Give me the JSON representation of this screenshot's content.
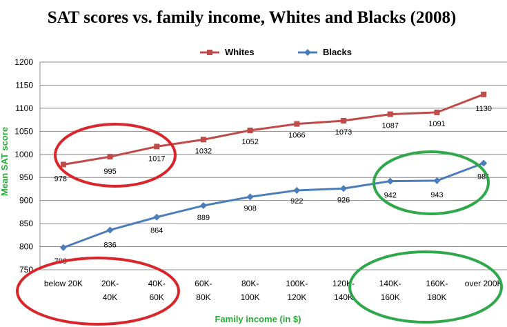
{
  "chart_data": {
    "type": "line",
    "title": "SAT scores vs. family income, Whites and Blacks (2008)",
    "xlabel": "Family income (in $)",
    "ylabel": "Mean SAT score",
    "ylim": [
      750,
      1200
    ],
    "yticks": [
      750,
      800,
      850,
      900,
      950,
      1000,
      1050,
      1100,
      1150,
      1200
    ],
    "grid": "horizontal",
    "legend": "top-center",
    "categories": [
      [
        "below 20K"
      ],
      [
        "20K-",
        "40K"
      ],
      [
        "40K-",
        "60K"
      ],
      [
        "60K-",
        "80K"
      ],
      [
        "80K-",
        "100K"
      ],
      [
        "100K-",
        "120K"
      ],
      [
        "120K-",
        "140K"
      ],
      [
        "140K-",
        "160K"
      ],
      [
        "160K-",
        "180K"
      ],
      [
        "over 200K"
      ]
    ],
    "series": [
      {
        "name": "Whites",
        "color": "#be4b48",
        "marker": "square",
        "values": [
          978,
          995,
          1017,
          1032,
          1052,
          1066,
          1073,
          1087,
          1091,
          1130
        ]
      },
      {
        "name": "Blacks",
        "color": "#4a7ebb",
        "marker": "diamond",
        "values": [
          798,
          836,
          864,
          889,
          908,
          922,
          926,
          942,
          943,
          981
        ]
      }
    ],
    "annotations": [
      {
        "shape": "ellipse",
        "color": "#d9262b",
        "around": "Whites 20K-60K"
      },
      {
        "shape": "ellipse",
        "color": "#d9262b",
        "around": "x-axis low incomes"
      },
      {
        "shape": "ellipse",
        "color": "#2ea84a",
        "around": "Blacks 140K-200K"
      },
      {
        "shape": "ellipse",
        "color": "#2ea84a",
        "around": "x-axis high incomes"
      }
    ]
  }
}
